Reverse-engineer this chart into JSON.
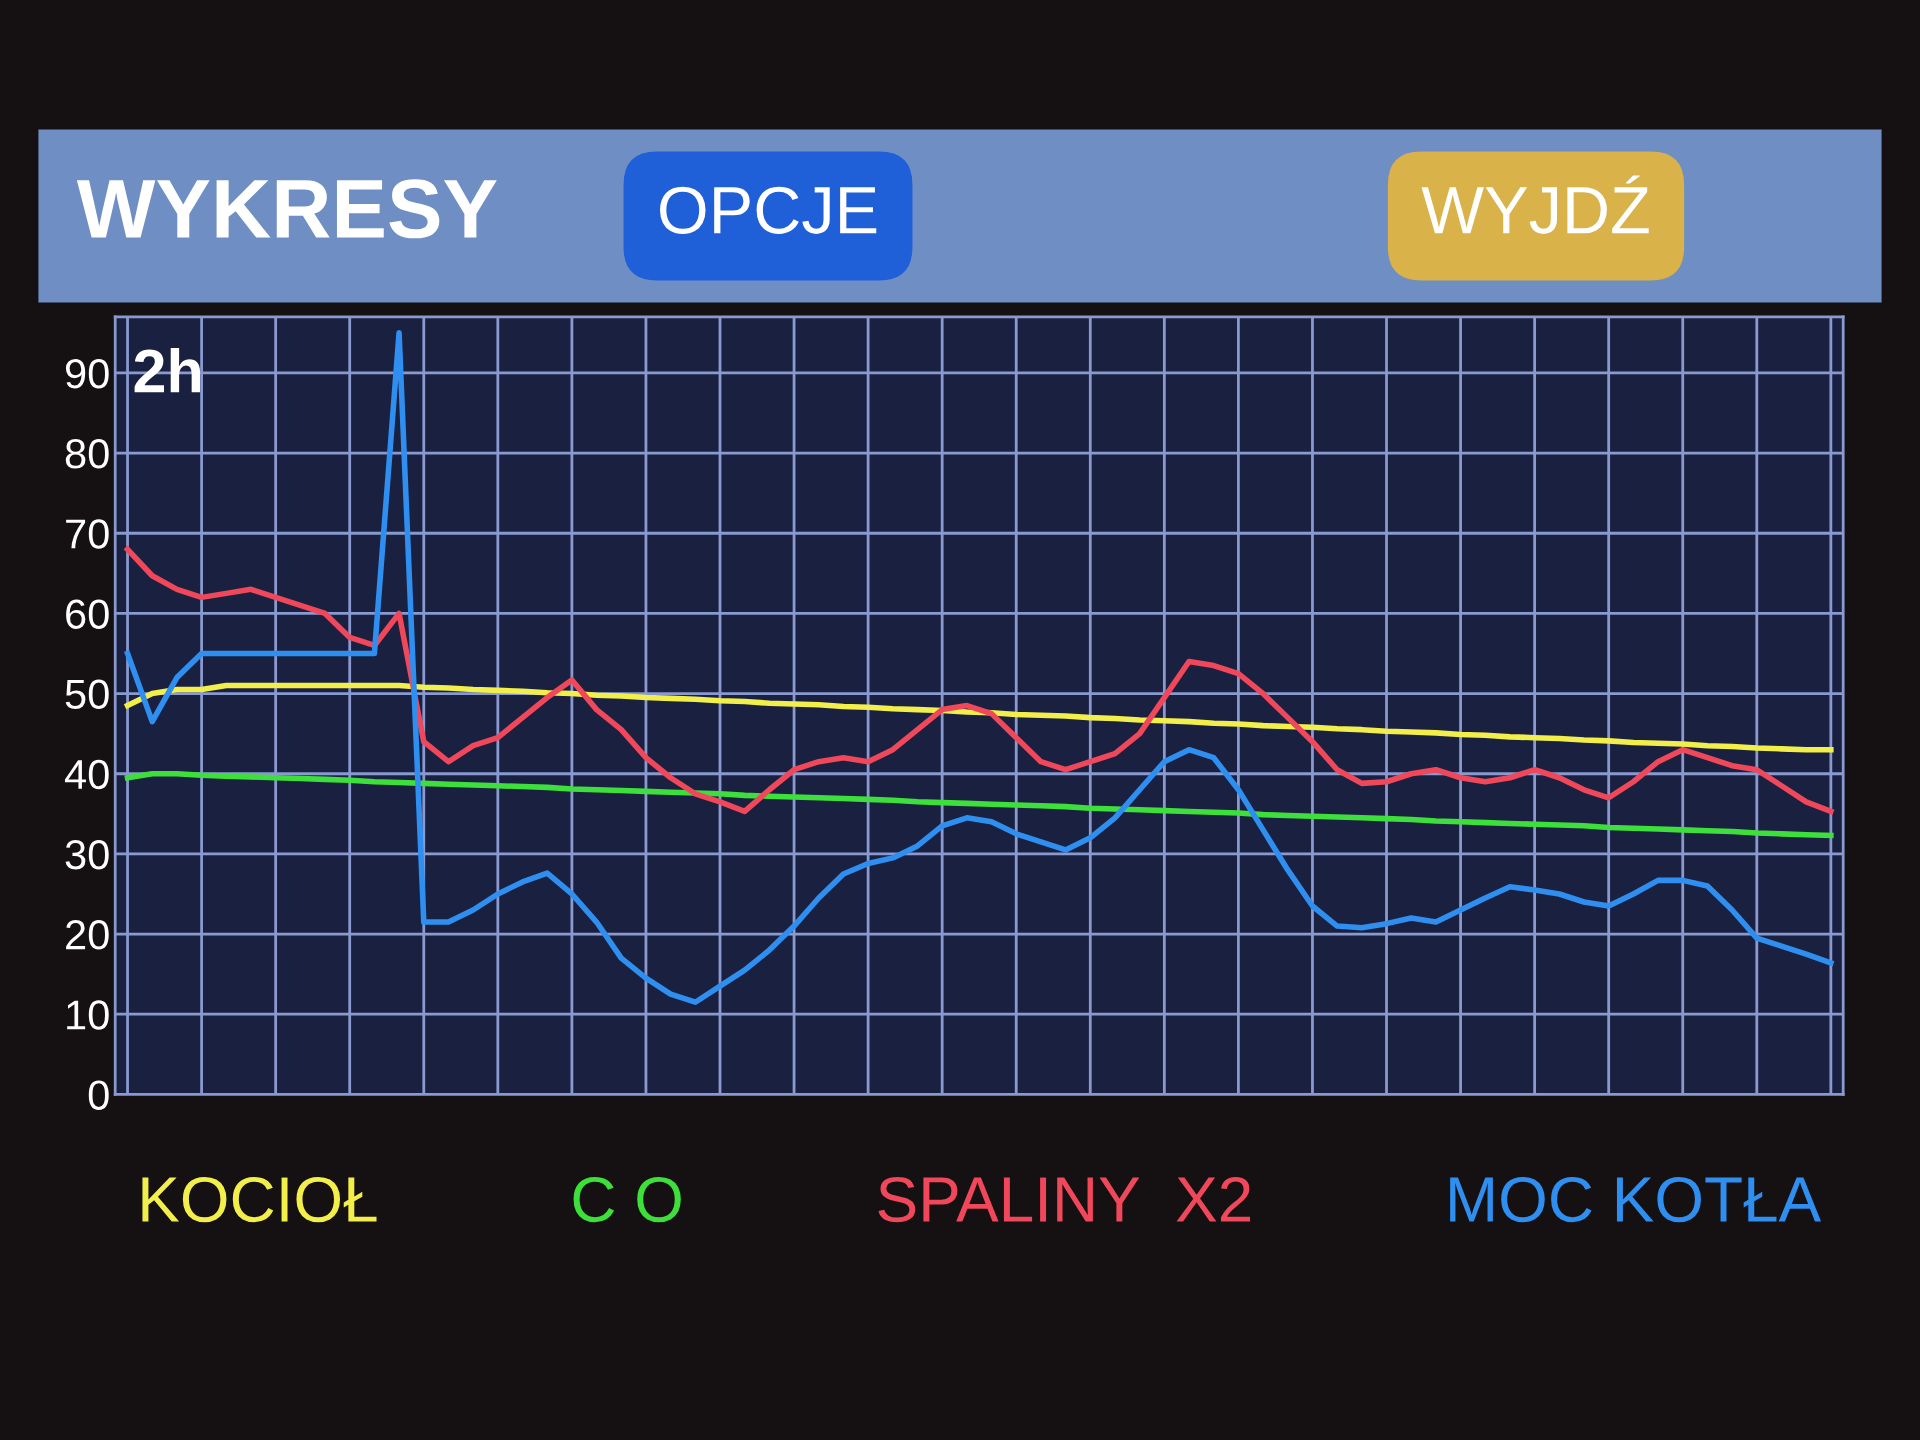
{
  "chart_data": {
    "type": "line",
    "title": "WYKRESY",
    "annotations": [
      "OPCJE",
      "WYJDŹ",
      "2h"
    ],
    "categories": [
      null,
      null,
      null,
      null,
      null,
      null,
      null,
      null,
      null,
      null,
      null,
      null,
      null,
      null,
      null,
      null,
      null,
      null,
      null,
      null,
      null,
      null,
      null,
      null,
      null,
      null,
      null,
      null,
      null,
      null,
      null,
      null,
      null,
      null,
      null,
      null,
      null,
      null,
      null,
      null,
      null,
      null,
      null,
      null,
      null,
      null,
      null,
      null,
      null,
      null,
      null,
      null,
      null,
      null,
      null,
      null,
      null,
      null,
      null,
      null,
      null,
      null,
      null,
      null,
      null,
      null,
      null,
      null,
      null,
      null
    ],
    "ylim": [
      0,
      97
    ],
    "yticks": [
      0,
      10,
      20,
      30,
      40,
      50,
      60,
      70,
      80,
      90
    ],
    "grid": true,
    "legend": "bottom",
    "tick_labels": "y",
    "marker": "none",
    "line_style": "solid",
    "series": [
      {
        "name": "KOCIOŁ",
        "color": "#f2ee4a",
        "values": [
          48.5,
          50,
          50.5,
          50.5,
          51,
          51,
          51,
          51,
          51,
          51,
          51,
          51,
          50.8,
          50.7,
          50.5,
          50.4,
          50.3,
          50.1,
          50,
          49.8,
          49.7,
          49.5,
          49.4,
          49.3,
          49.1,
          49,
          48.8,
          48.7,
          48.6,
          48.4,
          48.3,
          48.1,
          48,
          47.9,
          47.7,
          47.6,
          47.4,
          47.3,
          47.2,
          47,
          46.9,
          46.7,
          46.6,
          46.5,
          46.3,
          46.2,
          46,
          45.9,
          45.8,
          45.6,
          45.5,
          45.3,
          45.2,
          45.1,
          44.9,
          44.8,
          44.6,
          44.5,
          44.4,
          44.2,
          44.1,
          43.9,
          43.8,
          43.7,
          43.5,
          43.4,
          43.2,
          43.1,
          43,
          43
        ]
      },
      {
        "name": "C O",
        "color": "#3de03a",
        "values": [
          39.5,
          40,
          40,
          39.8,
          39.7,
          39.6,
          39.5,
          39.4,
          39.3,
          39.2,
          39,
          38.9,
          38.8,
          38.7,
          38.6,
          38.5,
          38.4,
          38.3,
          38.1,
          38,
          37.9,
          37.8,
          37.7,
          37.6,
          37.5,
          37.3,
          37.2,
          37.1,
          37,
          36.9,
          36.8,
          36.7,
          36.5,
          36.4,
          36.3,
          36.2,
          36.1,
          36,
          35.9,
          35.7,
          35.6,
          35.5,
          35.4,
          35.3,
          35.2,
          35.1,
          34.9,
          34.8,
          34.7,
          34.6,
          34.5,
          34.4,
          34.3,
          34.1,
          34,
          33.9,
          33.8,
          33.7,
          33.6,
          33.5,
          33.3,
          33.2,
          33.1,
          33,
          32.9,
          32.8,
          32.6,
          32.5,
          32.4,
          32.3
        ]
      },
      {
        "name": "SPALINY  X2",
        "color": "#f0485a",
        "values": [
          68,
          64.7,
          63,
          62,
          62.5,
          63,
          62,
          61,
          60,
          57,
          56,
          60,
          44,
          41.5,
          43.5,
          44.5,
          47,
          49.5,
          51.7,
          48,
          45.5,
          42,
          39.5,
          37.5,
          36.5,
          35.3,
          38,
          40.5,
          41.5,
          42,
          41.5,
          43,
          45.5,
          48,
          48.5,
          47.5,
          44.5,
          41.5,
          40.5,
          41.5,
          42.5,
          45,
          49.5,
          54,
          53.5,
          52.5,
          50,
          47,
          44,
          40.5,
          38.8,
          39,
          40,
          40.5,
          39.5,
          39,
          39.5,
          40.5,
          39.5,
          38,
          37,
          39,
          41.5,
          43,
          42,
          41,
          40.5,
          38.5,
          36.5,
          35.3
        ]
      },
      {
        "name": "MOC KOTŁA",
        "color": "#2f8ff0",
        "values": [
          55,
          46.5,
          52,
          55,
          55,
          55,
          55,
          55,
          55,
          55,
          55,
          95,
          21.5,
          21.5,
          23,
          25,
          26.5,
          27.6,
          25,
          21.5,
          17,
          14.5,
          12.5,
          11.5,
          13.5,
          15.5,
          18,
          21,
          24.5,
          27.5,
          28.8,
          29.5,
          31,
          33.5,
          34.5,
          34,
          32.5,
          31.5,
          30.5,
          32,
          34.5,
          38,
          41.5,
          43,
          42,
          38,
          33,
          28,
          23.5,
          21,
          20.8,
          21.3,
          22,
          21.5,
          23,
          24.5,
          25.9,
          25.5,
          25,
          24,
          23.5,
          25,
          26.7,
          26.7,
          26,
          23,
          19.5,
          18.5,
          17.5,
          16.4
        ]
      }
    ]
  }
}
